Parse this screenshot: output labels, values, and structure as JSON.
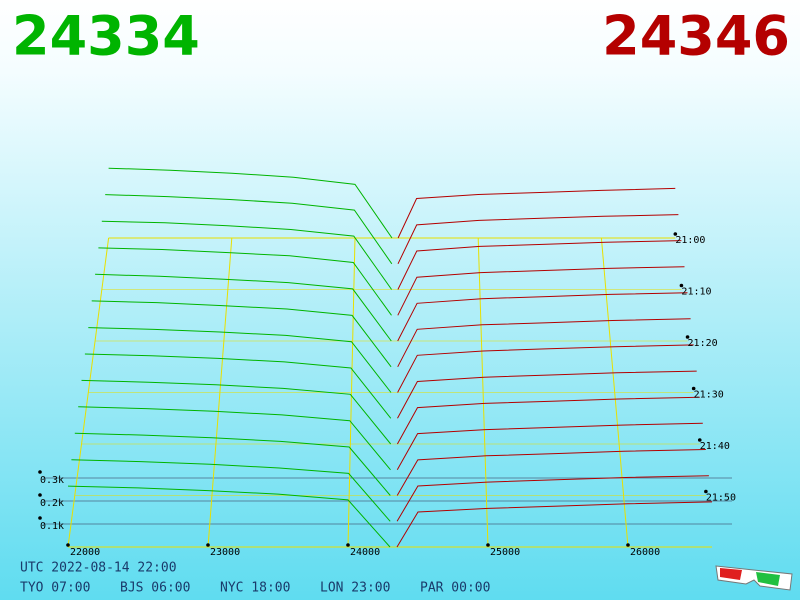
{
  "chart_data": {
    "type": "depth3d",
    "bid_price": "24334",
    "ask_price": "24346",
    "bid_color": "#00b400",
    "ask_color": "#b40000",
    "bid_prices": [
      22000,
      22500,
      23000,
      23500,
      24000,
      24300
    ],
    "ask_prices": [
      24350,
      24500,
      25000,
      25500,
      26000,
      26600
    ],
    "snapshots": [
      {
        "minute": 0,
        "bids": [
          345,
          335,
          320,
          300,
          265,
          0
        ],
        "asks": [
          0,
          195,
          215,
          225,
          235,
          245
        ]
      },
      {
        "minute": 5,
        "bids": [
          338,
          328,
          314,
          296,
          262,
          0
        ],
        "asks": [
          0,
          190,
          212,
          222,
          232,
          240
        ]
      },
      {
        "minute": 10,
        "bids": [
          330,
          322,
          308,
          290,
          258,
          0
        ],
        "asks": [
          0,
          186,
          208,
          218,
          228,
          236
        ]
      },
      {
        "minute": 15,
        "bids": [
          322,
          314,
          300,
          284,
          252,
          0
        ],
        "asks": [
          0,
          182,
          204,
          214,
          224,
          232
        ]
      },
      {
        "minute": 20,
        "bids": [
          315,
          306,
          292,
          276,
          246,
          0
        ],
        "asks": [
          0,
          178,
          200,
          210,
          220,
          228
        ]
      },
      {
        "minute": 25,
        "bids": [
          308,
          300,
          286,
          270,
          240,
          0
        ],
        "asks": [
          0,
          175,
          196,
          206,
          216,
          224
        ]
      },
      {
        "minute": 30,
        "bids": [
          300,
          292,
          280,
          264,
          235,
          0
        ],
        "asks": [
          0,
          172,
          192,
          202,
          212,
          220
        ]
      },
      {
        "minute": 35,
        "bids": [
          294,
          286,
          274,
          258,
          230,
          0
        ],
        "asks": [
          0,
          168,
          188,
          198,
          208,
          216
        ]
      },
      {
        "minute": 40,
        "bids": [
          288,
          280,
          268,
          252,
          225,
          0
        ],
        "asks": [
          0,
          165,
          184,
          194,
          204,
          212
        ]
      },
      {
        "minute": 45,
        "bids": [
          282,
          274,
          262,
          246,
          220,
          0
        ],
        "asks": [
          0,
          162,
          180,
          190,
          200,
          208
        ]
      },
      {
        "minute": 50,
        "bids": [
          276,
          268,
          256,
          240,
          215,
          0
        ],
        "asks": [
          0,
          158,
          176,
          186,
          196,
          204
        ]
      },
      {
        "minute": 55,
        "bids": [
          270,
          262,
          250,
          234,
          210,
          0
        ],
        "asks": [
          0,
          155,
          172,
          182,
          192,
          200
        ]
      },
      {
        "minute": 60,
        "bids": [
          265,
          257,
          245,
          230,
          205,
          0
        ],
        "asks": [
          0,
          152,
          168,
          178,
          188,
          196
        ]
      }
    ],
    "xlim": [
      22000,
      26600
    ],
    "xticks": [
      22000,
      23000,
      24000,
      25000,
      26000
    ],
    "timelim": [
      0,
      60
    ],
    "timeticks": [
      {
        "value": 0,
        "label": "21:00"
      },
      {
        "value": 10,
        "label": "21:10"
      },
      {
        "value": 20,
        "label": "21:20"
      },
      {
        "value": 30,
        "label": "21:30"
      },
      {
        "value": 40,
        "label": "21:40"
      },
      {
        "value": 50,
        "label": "21:50"
      }
    ],
    "zticks": [
      {
        "value": 100,
        "label": "0.1k"
      },
      {
        "value": 200,
        "label": "0.2k"
      },
      {
        "value": 300,
        "label": "0.3k"
      }
    ],
    "footer": {
      "utc": "UTC 2022-08-14 22:00",
      "zones": [
        "TYO 07:00",
        "BJS 06:00",
        "NYC 18:00",
        "LON 23:00",
        "PAR 00:00"
      ]
    }
  }
}
